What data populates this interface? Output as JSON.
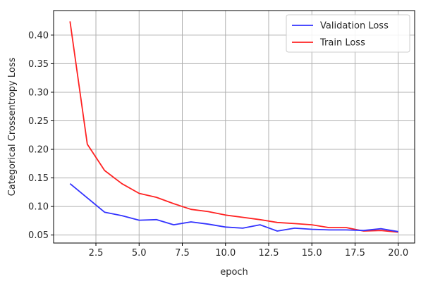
{
  "chart_data": {
    "type": "line",
    "title": "",
    "xlabel": "epoch",
    "ylabel": "Categorical Crossentropy Loss",
    "xlim": [
      0.05,
      20.95
    ],
    "ylim": [
      0.036,
      0.443
    ],
    "xticks": [
      2.5,
      5.0,
      7.5,
      10.0,
      12.5,
      15.0,
      17.5,
      20.0
    ],
    "xtick_labels": [
      "2.5",
      "5.0",
      "7.5",
      "10.0",
      "12.5",
      "15.0",
      "17.5",
      "20.0"
    ],
    "yticks": [
      0.05,
      0.1,
      0.15,
      0.2,
      0.25,
      0.3,
      0.35,
      0.4
    ],
    "ytick_labels": [
      "0.05",
      "0.10",
      "0.15",
      "0.20",
      "0.25",
      "0.30",
      "0.35",
      "0.40"
    ],
    "grid": true,
    "legend_position": "top-right",
    "x": [
      1,
      2,
      3,
      4,
      5,
      6,
      7,
      8,
      9,
      10,
      11,
      12,
      13,
      14,
      15,
      16,
      17,
      18,
      19,
      20
    ],
    "series": [
      {
        "name": "Validation Loss",
        "color": "#3333ff",
        "values": [
          0.14,
          0.115,
          0.09,
          0.084,
          0.076,
          0.077,
          0.068,
          0.073,
          0.069,
          0.064,
          0.062,
          0.068,
          0.057,
          0.062,
          0.06,
          0.059,
          0.059,
          0.058,
          0.061,
          0.056
        ]
      },
      {
        "name": "Train Loss",
        "color": "#ff2222",
        "values": [
          0.424,
          0.209,
          0.163,
          0.14,
          0.123,
          0.116,
          0.105,
          0.095,
          0.091,
          0.085,
          0.081,
          0.077,
          0.072,
          0.07,
          0.068,
          0.063,
          0.063,
          0.057,
          0.058,
          0.055
        ]
      }
    ]
  }
}
